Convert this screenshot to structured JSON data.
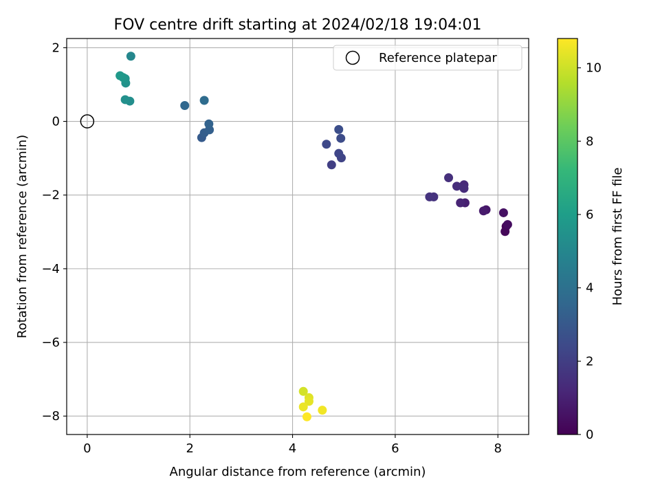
{
  "chart_data": {
    "type": "scatter",
    "title": "FOV centre drift starting at 2024/02/18 19:04:01",
    "xlabel": "Angular distance from reference (arcmin)",
    "ylabel": "Rotation from reference (arcmin)",
    "xlim": [
      -0.4,
      8.6
    ],
    "ylim": [
      -8.5,
      2.25
    ],
    "xticks": [
      0,
      2,
      4,
      6,
      8
    ],
    "xtick_labels": [
      "0",
      "2",
      "4",
      "6",
      "8"
    ],
    "yticks": [
      2,
      0,
      -2,
      -4,
      -6,
      -8
    ],
    "ytick_labels": [
      "2",
      "0",
      "−2",
      "−4",
      "−6",
      "−8"
    ],
    "grid": true,
    "legend": {
      "position": "top-right",
      "entries": [
        "Reference platepar"
      ]
    },
    "reference_point": {
      "x": 0,
      "y": 0,
      "label": "Reference platepar"
    },
    "colorbar": {
      "label": "Hours from first FF file",
      "range": [
        0,
        10.8
      ],
      "ticks": [
        0,
        2,
        4,
        6,
        8,
        10
      ],
      "tick_labels": [
        "0",
        "2",
        "4",
        "6",
        "8",
        "10"
      ],
      "colormap": "viridis"
    },
    "points": [
      {
        "x": 8.16,
        "y": -2.85,
        "hours": 0.0
      },
      {
        "x": 8.14,
        "y": -2.99,
        "hours": 0.2
      },
      {
        "x": 8.19,
        "y": -2.8,
        "hours": 0.35
      },
      {
        "x": 8.11,
        "y": -2.48,
        "hours": 0.5
      },
      {
        "x": 7.77,
        "y": -2.4,
        "hours": 0.65
      },
      {
        "x": 7.72,
        "y": -2.43,
        "hours": 0.8
      },
      {
        "x": 7.36,
        "y": -2.21,
        "hours": 0.95
      },
      {
        "x": 7.27,
        "y": -2.21,
        "hours": 1.1
      },
      {
        "x": 7.34,
        "y": -1.72,
        "hours": 1.25
      },
      {
        "x": 7.34,
        "y": -1.82,
        "hours": 1.35
      },
      {
        "x": 7.2,
        "y": -1.76,
        "hours": 1.4
      },
      {
        "x": 7.04,
        "y": -1.53,
        "hours": 1.5
      },
      {
        "x": 6.75,
        "y": -2.05,
        "hours": 1.55
      },
      {
        "x": 6.67,
        "y": -2.05,
        "hours": 1.6
      },
      {
        "x": 4.76,
        "y": -1.18,
        "hours": 2.05
      },
      {
        "x": 4.95,
        "y": -0.99,
        "hours": 2.2
      },
      {
        "x": 4.9,
        "y": -0.87,
        "hours": 2.3
      },
      {
        "x": 4.66,
        "y": -0.62,
        "hours": 2.4
      },
      {
        "x": 4.94,
        "y": -0.46,
        "hours": 2.5
      },
      {
        "x": 4.9,
        "y": -0.22,
        "hours": 2.6
      },
      {
        "x": 2.23,
        "y": -0.44,
        "hours": 3.1
      },
      {
        "x": 2.28,
        "y": -0.31,
        "hours": 3.2
      },
      {
        "x": 2.38,
        "y": -0.23,
        "hours": 3.3
      },
      {
        "x": 2.37,
        "y": -0.07,
        "hours": 3.4
      },
      {
        "x": 1.9,
        "y": 0.43,
        "hours": 3.6
      },
      {
        "x": 2.28,
        "y": 0.57,
        "hours": 3.8
      },
      {
        "x": 0.83,
        "y": 0.55,
        "hours": 5.3
      },
      {
        "x": 0.74,
        "y": 0.59,
        "hours": 5.4
      },
      {
        "x": 0.75,
        "y": 1.04,
        "hours": 5.5
      },
      {
        "x": 0.74,
        "y": 1.16,
        "hours": 5.6
      },
      {
        "x": 0.7,
        "y": 1.19,
        "hours": 5.7
      },
      {
        "x": 0.64,
        "y": 1.24,
        "hours": 5.8
      },
      {
        "x": 0.85,
        "y": 1.77,
        "hours": 5.0
      },
      {
        "x": 4.21,
        "y": -7.33,
        "hours": 10.1
      },
      {
        "x": 4.32,
        "y": -7.5,
        "hours": 10.3
      },
      {
        "x": 4.32,
        "y": -7.6,
        "hours": 10.4
      },
      {
        "x": 4.21,
        "y": -7.75,
        "hours": 10.5
      },
      {
        "x": 4.58,
        "y": -7.84,
        "hours": 10.6
      },
      {
        "x": 4.28,
        "y": -8.02,
        "hours": 10.8
      }
    ]
  }
}
